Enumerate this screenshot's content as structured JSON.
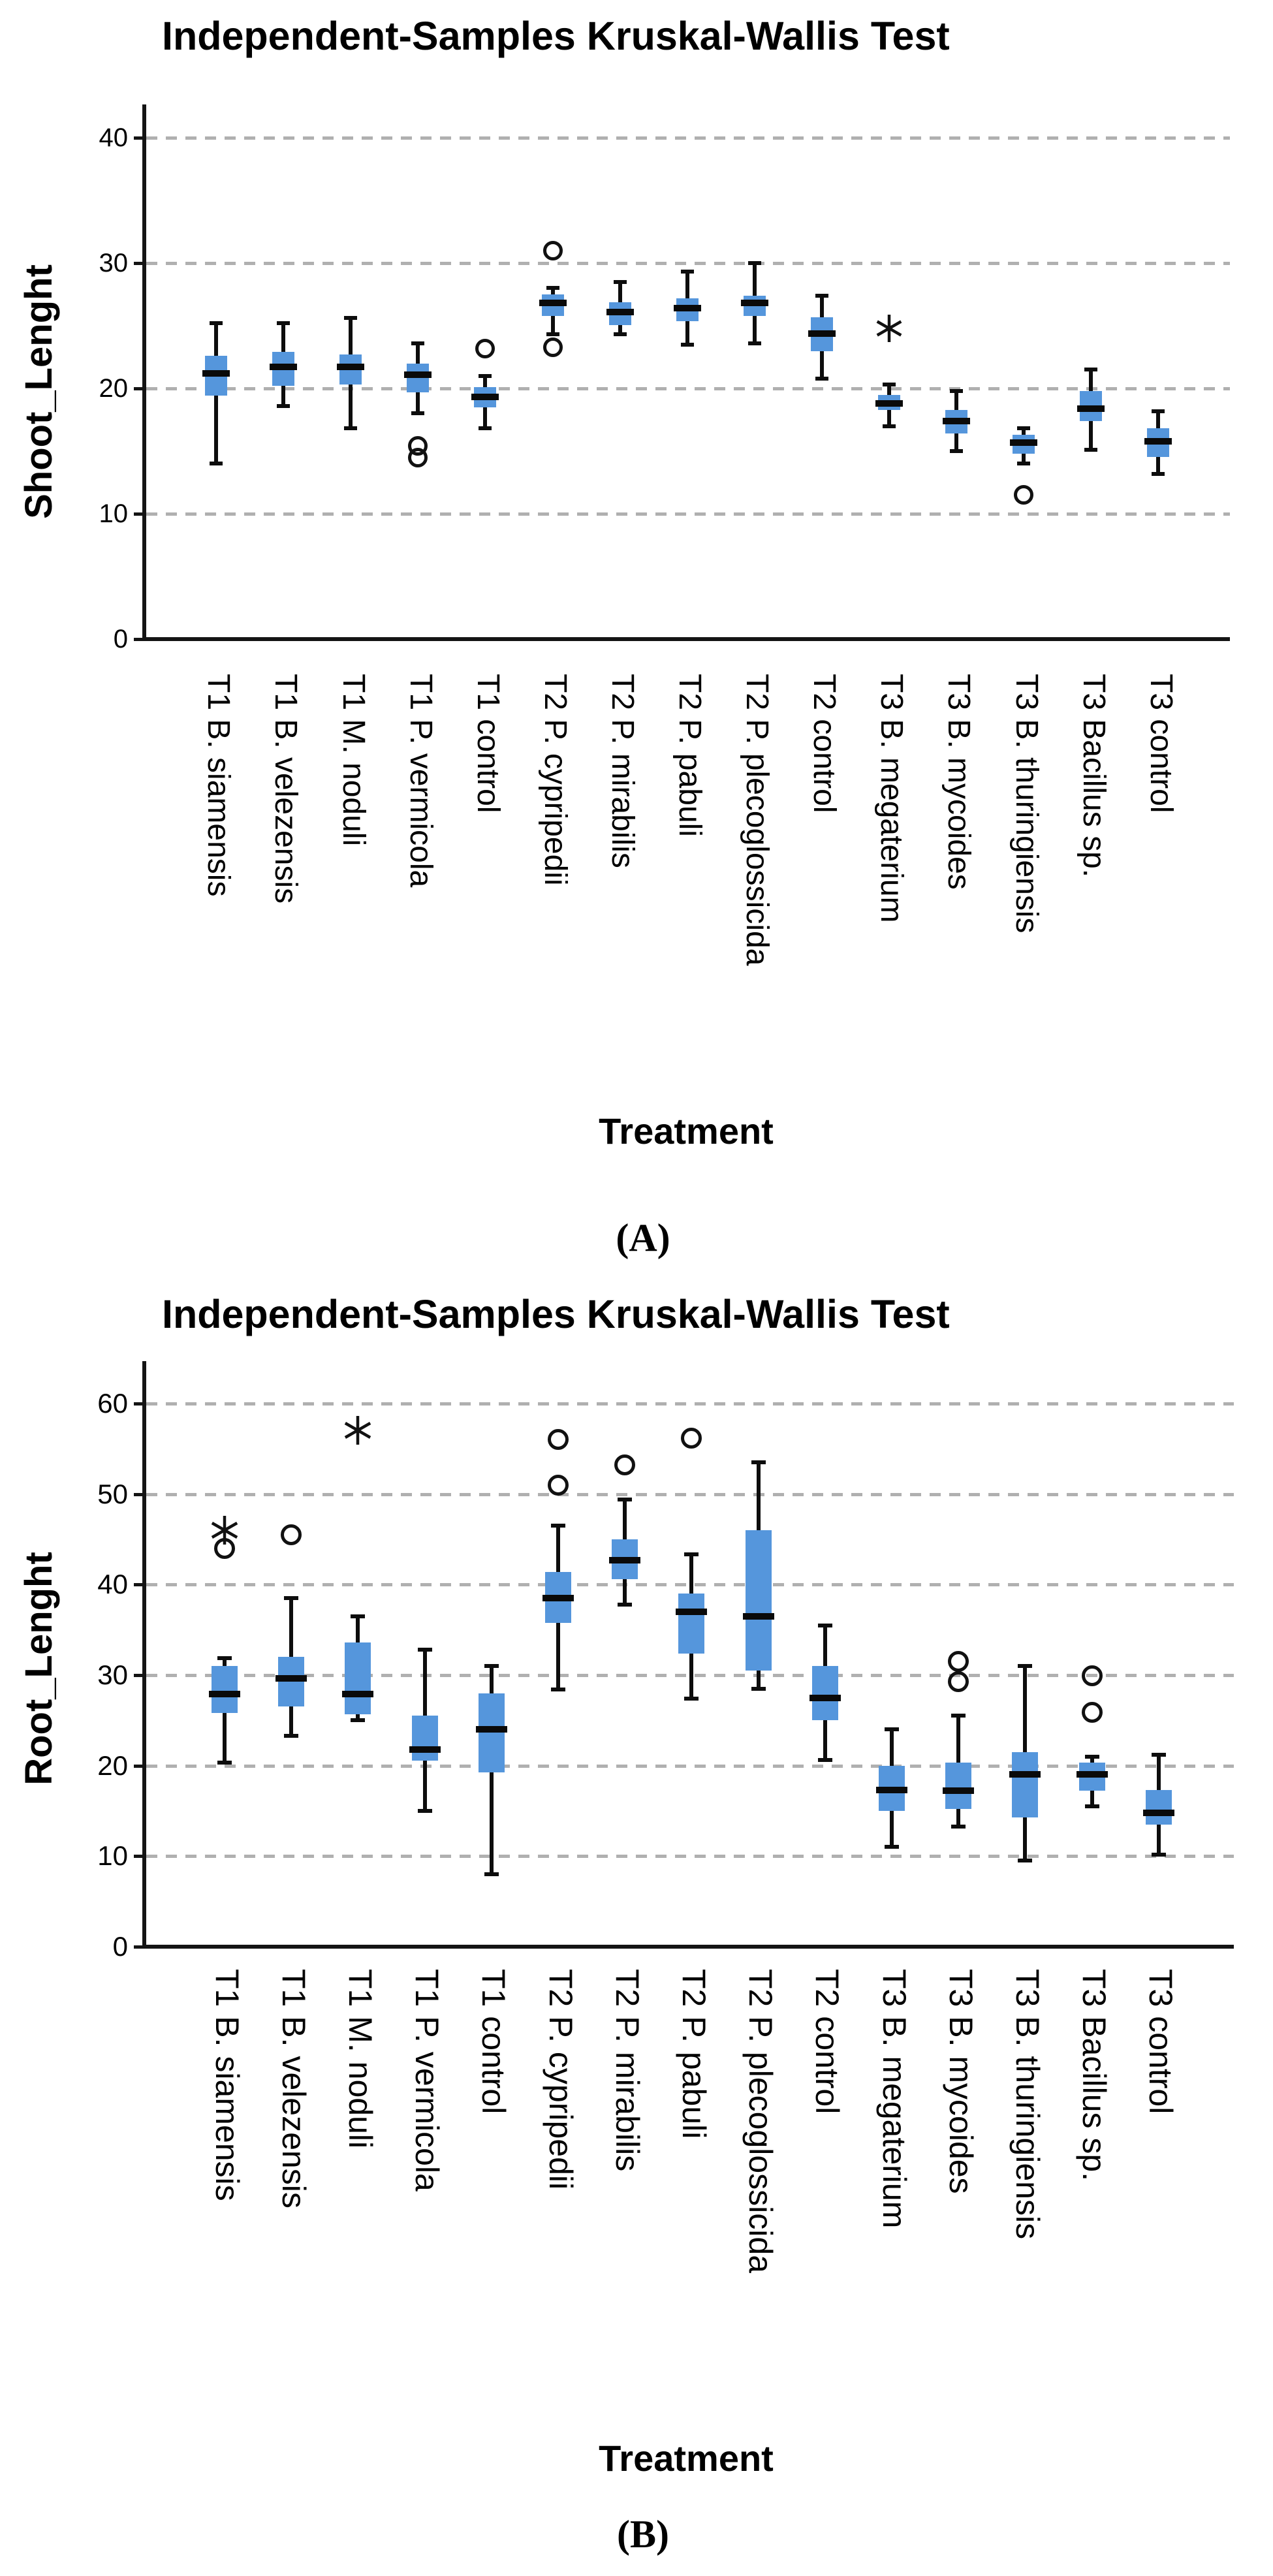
{
  "figure": {
    "description": "Two stacked SPSS box plot panels comparing bacterial treatments",
    "panels": [
      "A",
      "B"
    ]
  },
  "chart_data": [
    {
      "type": "boxplot",
      "panel": "A",
      "title": "Independent-Samples Kruskal-Wallis Test",
      "ylabel": "Shoot_Lenght",
      "xlabel": "Treatment",
      "caption": "(A)",
      "ylim": [
        0,
        42.7
      ],
      "yticks": [
        0,
        10,
        20,
        30,
        40
      ],
      "grid": "horizontal-dashed",
      "legend": "none",
      "box_color": "#5596DC",
      "categories": [
        "T1 B. siamensis",
        "T1 B. velezensis",
        "T1 M. noduli",
        "T1 P. vermicola",
        "T1 control",
        "T2 P. cypripedii",
        "T2 P. mirabilis",
        "T2 P. pabuli",
        "T2 P. plecoglossicida",
        "T2 control",
        "T3 B. megaterium",
        "T3 B. mycoides",
        "T3 B. thuringiensis",
        "T3 Bacillus sp.",
        "T3 control"
      ],
      "series": [
        {
          "category": "T1 B. siamensis",
          "whisker_low": 14.0,
          "q1": 19.4,
          "median": 21.2,
          "q3": 22.6,
          "whisker_high": 25.2,
          "outliers": []
        },
        {
          "category": "T1 B. velezensis",
          "whisker_low": 18.6,
          "q1": 20.2,
          "median": 21.7,
          "q3": 22.9,
          "whisker_high": 25.2,
          "outliers": []
        },
        {
          "category": "T1 M. noduli",
          "whisker_low": 16.8,
          "q1": 20.3,
          "median": 21.7,
          "q3": 22.7,
          "whisker_high": 25.6,
          "outliers": []
        },
        {
          "category": "T1 P. vermicola",
          "whisker_low": 18.0,
          "q1": 19.7,
          "median": 21.1,
          "q3": 22.0,
          "whisker_high": 23.6,
          "outliers": [
            {
              "type": "circle",
              "value": 15.4
            },
            {
              "type": "circle",
              "value": 14.5
            }
          ]
        },
        {
          "category": "T1 control",
          "whisker_low": 16.8,
          "q1": 18.5,
          "median": 19.3,
          "q3": 20.1,
          "whisker_high": 21.0,
          "outliers": [
            {
              "type": "circle",
              "value": 23.2
            }
          ]
        },
        {
          "category": "T2 P. cypripedii",
          "whisker_low": 24.3,
          "q1": 25.8,
          "median": 26.8,
          "q3": 27.5,
          "whisker_high": 28.0,
          "outliers": [
            {
              "type": "circle",
              "value": 31.0
            },
            {
              "type": "circle",
              "value": 23.3
            }
          ]
        },
        {
          "category": "T2 P. mirabilis",
          "whisker_low": 24.3,
          "q1": 25.1,
          "median": 26.1,
          "q3": 26.9,
          "whisker_high": 28.5,
          "outliers": []
        },
        {
          "category": "T2 P. pabuli",
          "whisker_low": 23.5,
          "q1": 25.4,
          "median": 26.4,
          "q3": 27.2,
          "whisker_high": 29.3,
          "outliers": []
        },
        {
          "category": "T2 P. plecoglossicida",
          "whisker_low": 23.6,
          "q1": 25.8,
          "median": 26.8,
          "q3": 27.4,
          "whisker_high": 30.0,
          "outliers": []
        },
        {
          "category": "T2 control",
          "whisker_low": 20.8,
          "q1": 23.0,
          "median": 24.4,
          "q3": 25.7,
          "whisker_high": 27.4,
          "outliers": []
        },
        {
          "category": "T3 B. megaterium",
          "whisker_low": 17.0,
          "q1": 18.3,
          "median": 18.8,
          "q3": 19.5,
          "whisker_high": 20.3,
          "outliers": [
            {
              "type": "star",
              "value": 24.8
            }
          ]
        },
        {
          "category": "T3 B. mycoides",
          "whisker_low": 15.0,
          "q1": 16.4,
          "median": 17.4,
          "q3": 18.3,
          "whisker_high": 19.8,
          "outliers": []
        },
        {
          "category": "T3 B. thuringiensis",
          "whisker_low": 14.0,
          "q1": 14.8,
          "median": 15.7,
          "q3": 16.3,
          "whisker_high": 16.8,
          "outliers": [
            {
              "type": "circle",
              "value": 11.5
            }
          ]
        },
        {
          "category": "T3 Bacillus sp.",
          "whisker_low": 15.1,
          "q1": 17.4,
          "median": 18.4,
          "q3": 19.8,
          "whisker_high": 21.5,
          "outliers": []
        },
        {
          "category": "T3 control",
          "whisker_low": 13.2,
          "q1": 14.5,
          "median": 15.8,
          "q3": 16.8,
          "whisker_high": 18.2,
          "outliers": []
        }
      ]
    },
    {
      "type": "boxplot",
      "panel": "B",
      "title": "Independent-Samples Kruskal-Wallis Test",
      "ylabel": "Root_Lenght",
      "xlabel": "Treatment",
      "caption": "(B)",
      "ylim": [
        0,
        65
      ],
      "yticks": [
        0,
        10,
        20,
        30,
        40,
        50,
        60
      ],
      "grid": "horizontal-dashed",
      "legend": "none",
      "box_color": "#5596DC",
      "categories": [
        "T1 B. siamensis",
        "T1 B. velezensis",
        "T1 M. noduli",
        "T1 P. vermicola",
        "T1 control",
        "T2 P. cypripedii",
        "T2 P. mirabilis",
        "T2 P. pabuli",
        "T2 P. plecoglossicida",
        "T2 control",
        "T3 B. megaterium",
        "T3 B. mycoides",
        "T3 B. thuringiensis",
        "T3 Bacillus sp.",
        "T3 control"
      ],
      "series": [
        {
          "category": "T1 B. siamensis",
          "whisker_low": 20.3,
          "q1": 25.8,
          "median": 27.9,
          "q3": 31.0,
          "whisker_high": 31.9,
          "outliers": [
            {
              "type": "star",
              "value": 46.0
            },
            {
              "type": "circle",
              "value": 44.0
            }
          ]
        },
        {
          "category": "T1 B. velezensis",
          "whisker_low": 23.3,
          "q1": 26.5,
          "median": 29.6,
          "q3": 32.0,
          "whisker_high": 38.5,
          "outliers": [
            {
              "type": "circle",
              "value": 45.5
            }
          ]
        },
        {
          "category": "T1 M. noduli",
          "whisker_low": 25.0,
          "q1": 25.7,
          "median": 27.9,
          "q3": 33.6,
          "whisker_high": 36.5,
          "outliers": [
            {
              "type": "star",
              "value": 57.0
            }
          ]
        },
        {
          "category": "T1 P. vermicola",
          "whisker_low": 15.0,
          "q1": 20.5,
          "median": 21.8,
          "q3": 25.5,
          "whisker_high": 32.8,
          "outliers": []
        },
        {
          "category": "T1 control",
          "whisker_low": 8.0,
          "q1": 19.3,
          "median": 24.0,
          "q3": 28.0,
          "whisker_high": 31.0,
          "outliers": []
        },
        {
          "category": "T2 P. cypripedii",
          "whisker_low": 28.4,
          "q1": 35.8,
          "median": 38.5,
          "q3": 41.4,
          "whisker_high": 46.5,
          "outliers": [
            {
              "type": "circle",
              "value": 56.0
            },
            {
              "type": "circle",
              "value": 51.0
            }
          ]
        },
        {
          "category": "T2 P. mirabilis",
          "whisker_low": 37.8,
          "q1": 40.6,
          "median": 42.7,
          "q3": 45.0,
          "whisker_high": 49.4,
          "outliers": [
            {
              "type": "circle",
              "value": 53.2
            }
          ]
        },
        {
          "category": "T2 P. pabuli",
          "whisker_low": 27.4,
          "q1": 32.4,
          "median": 37.0,
          "q3": 39.0,
          "whisker_high": 43.3,
          "outliers": [
            {
              "type": "circle",
              "value": 56.2
            }
          ]
        },
        {
          "category": "T2 P. plecoglossicida",
          "whisker_low": 28.5,
          "q1": 30.5,
          "median": 36.5,
          "q3": 46.0,
          "whisker_high": 53.5,
          "outliers": []
        },
        {
          "category": "T2 control",
          "whisker_low": 20.6,
          "q1": 25.0,
          "median": 27.5,
          "q3": 31.0,
          "whisker_high": 35.5,
          "outliers": []
        },
        {
          "category": "T3 B. megaterium",
          "whisker_low": 11.0,
          "q1": 15.0,
          "median": 17.3,
          "q3": 20.0,
          "whisker_high": 24.0,
          "outliers": []
        },
        {
          "category": "T3 B. mycoides",
          "whisker_low": 13.3,
          "q1": 15.2,
          "median": 17.2,
          "q3": 20.3,
          "whisker_high": 25.5,
          "outliers": [
            {
              "type": "circle",
              "value": 31.5
            },
            {
              "type": "circle",
              "value": 29.3
            }
          ]
        },
        {
          "category": "T3 B. thuringiensis",
          "whisker_low": 9.5,
          "q1": 14.3,
          "median": 19.0,
          "q3": 21.5,
          "whisker_high": 31.0,
          "outliers": []
        },
        {
          "category": "T3 Bacillus sp.",
          "whisker_low": 15.5,
          "q1": 17.2,
          "median": 19.0,
          "q3": 20.3,
          "whisker_high": 21.0,
          "outliers": [
            {
              "type": "circle",
              "value": 29.9
            },
            {
              "type": "circle",
              "value": 25.9
            }
          ]
        },
        {
          "category": "T3 control",
          "whisker_low": 10.2,
          "q1": 13.5,
          "median": 14.8,
          "q3": 17.3,
          "whisker_high": 21.2,
          "outliers": []
        }
      ]
    }
  ]
}
